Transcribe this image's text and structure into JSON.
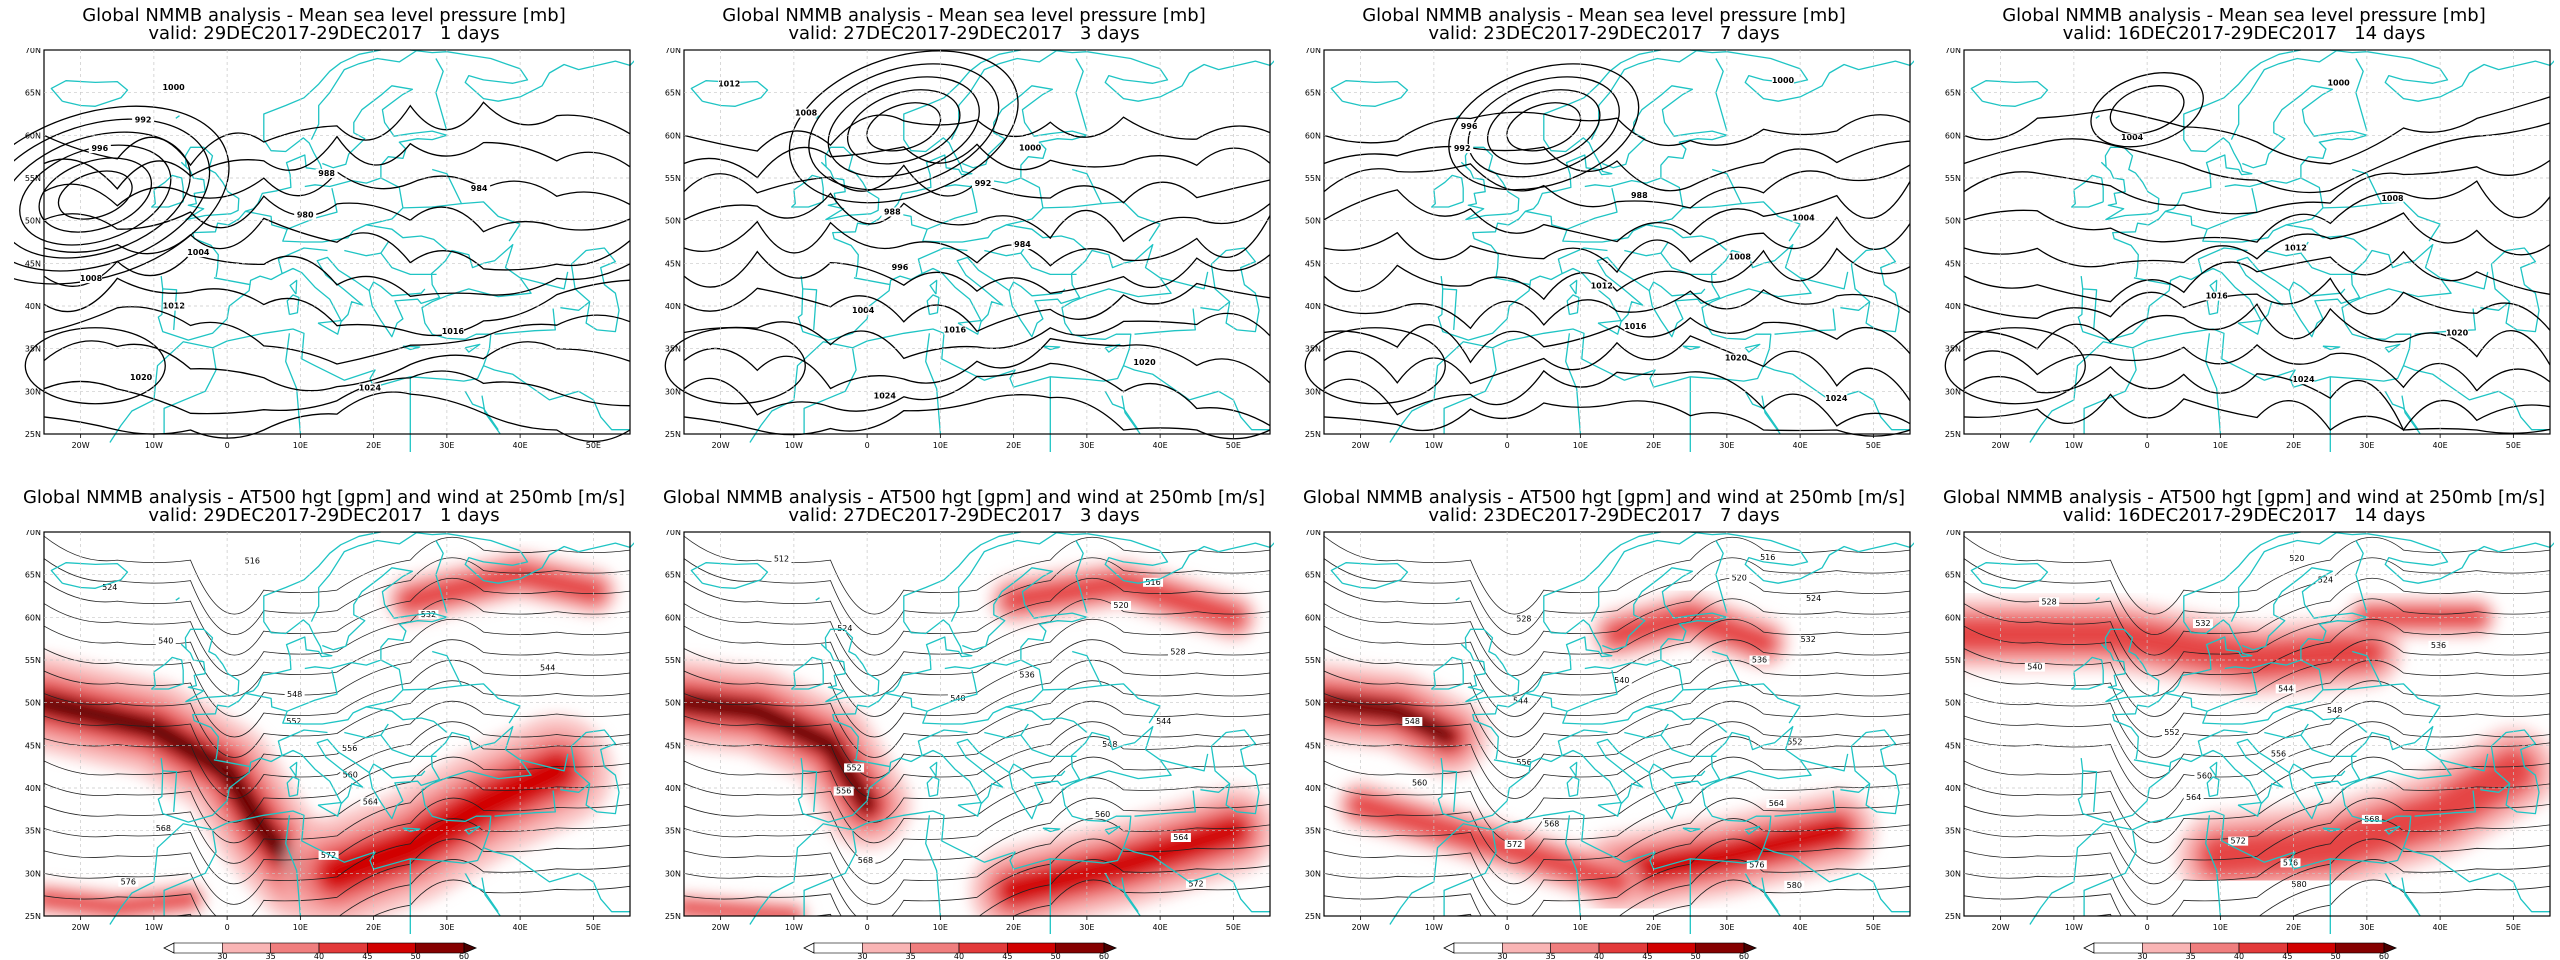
{
  "colors": {
    "coast": "#1fc4c4",
    "contour": "#000000",
    "wind_scale": [
      "#ffffff",
      "#fde0e0",
      "#f9b5b5",
      "#f07e7e",
      "#e33a3a",
      "#d10000",
      "#850000",
      "#4a0000"
    ]
  },
  "axes": {
    "lat_labels": [
      "70N",
      "65N",
      "60N",
      "55N",
      "50N",
      "45N",
      "40N",
      "35N",
      "30N",
      "25N"
    ],
    "lon_labels": [
      "20W",
      "10W",
      "0",
      "10E",
      "20E",
      "30E",
      "40E",
      "50E"
    ]
  },
  "periods": [
    {
      "valid": "valid: 29DEC2017-29DEC2017",
      "days": "1 days"
    },
    {
      "valid": "valid: 27DEC2017-29DEC2017",
      "days": "3 days"
    },
    {
      "valid": "valid: 23DEC2017-29DEC2017",
      "days": "7 days"
    },
    {
      "valid": "valid: 16DEC2017-29DEC2017",
      "days": "14 days"
    }
  ],
  "mslp_title": "Global NMMB analysis - Mean sea level pressure [mb]",
  "at500_title": "Global NMMB analysis - AT500 hgt [gpm] and wind at 250mb [m/s]",
  "mslp_panels": [
    {
      "labels": [
        "1000",
        "992",
        "996",
        "988",
        "984",
        "980",
        "1004",
        "1008",
        "1012",
        "1016",
        "1020",
        "1024"
      ]
    },
    {
      "labels": [
        "1012",
        "1008",
        "1000",
        "992",
        "988",
        "984",
        "996",
        "1004",
        "1016",
        "1020",
        "1024"
      ]
    },
    {
      "labels": [
        "1000",
        "996",
        "992",
        "988",
        "1004",
        "1008",
        "1012",
        "1016",
        "1020",
        "1024"
      ]
    },
    {
      "labels": [
        "1000",
        "1004",
        "1008",
        "1012",
        "1016",
        "1020",
        "1024"
      ]
    }
  ],
  "at500_panels": [
    {
      "labels": [
        "516",
        "524",
        "532",
        "540",
        "544",
        "548",
        "552",
        "556",
        "560",
        "564",
        "568",
        "572",
        "576"
      ]
    },
    {
      "labels": [
        "512",
        "516",
        "520",
        "524",
        "528",
        "536",
        "540",
        "544",
        "548",
        "552",
        "556",
        "560",
        "564",
        "568",
        "572"
      ]
    },
    {
      "labels": [
        "516",
        "520",
        "524",
        "528",
        "532",
        "536",
        "540",
        "544",
        "548",
        "552",
        "556",
        "560",
        "564",
        "568",
        "572",
        "576",
        "580"
      ]
    },
    {
      "labels": [
        "520",
        "524",
        "528",
        "532",
        "536",
        "540",
        "544",
        "548",
        "552",
        "556",
        "560",
        "564",
        "568",
        "572",
        "576",
        "580"
      ]
    }
  ],
  "colorbar": {
    "ticks": [
      "30",
      "35",
      "40",
      "45",
      "50",
      "60"
    ]
  }
}
